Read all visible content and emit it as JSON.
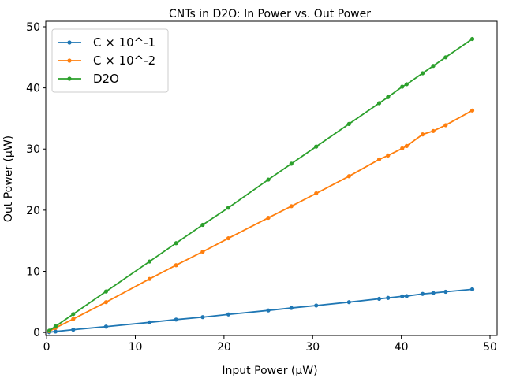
{
  "chart_data": {
    "type": "line",
    "title": "CNTs in D2O: In Power vs. Out Power",
    "xlabel": "Input Power (μW)",
    "ylabel": "Out Power (μW)",
    "xlim": [
      0,
      50
    ],
    "ylim": [
      0,
      50
    ],
    "xticks": [
      0,
      10,
      20,
      30,
      40,
      50
    ],
    "yticks": [
      0,
      10,
      20,
      30,
      40,
      50
    ],
    "legend_position": "top-left",
    "grid": false,
    "series": [
      {
        "name": "C × 10^-1",
        "color": "#1f77b4",
        "x": [
          0.3,
          1.0,
          3.0,
          6.7,
          11.6,
          14.6,
          17.6,
          20.5,
          25.0,
          27.6,
          30.4,
          34.1,
          37.5,
          38.5,
          40.1,
          40.6,
          42.4,
          43.6,
          45.0,
          48.0
        ],
        "y": [
          0.05,
          0.15,
          0.45,
          0.95,
          1.65,
          2.1,
          2.5,
          2.95,
          3.6,
          4.0,
          4.4,
          4.95,
          5.5,
          5.65,
          5.9,
          5.95,
          6.3,
          6.45,
          6.65,
          7.05
        ]
      },
      {
        "name": "C × 10^-2",
        "color": "#ff7f0e",
        "x": [
          0.3,
          1.0,
          3.0,
          6.7,
          11.6,
          14.6,
          17.6,
          20.5,
          25.0,
          27.6,
          30.4,
          34.1,
          37.5,
          38.5,
          40.1,
          40.6,
          42.4,
          43.6,
          45.0,
          48.0
        ],
        "y": [
          0.2,
          0.75,
          2.2,
          4.95,
          8.75,
          11.0,
          13.2,
          15.4,
          18.75,
          20.65,
          22.75,
          25.55,
          28.3,
          28.95,
          30.1,
          30.5,
          32.4,
          32.95,
          33.9,
          36.3
        ]
      },
      {
        "name": "D2O",
        "color": "#2ca02c",
        "x": [
          0.3,
          1.0,
          3.0,
          6.7,
          11.6,
          14.6,
          17.6,
          20.5,
          25.0,
          27.6,
          30.4,
          34.1,
          37.5,
          38.5,
          40.1,
          40.6,
          42.4,
          43.6,
          45.0,
          48.0
        ],
        "y": [
          0.3,
          1.0,
          3.0,
          6.7,
          11.6,
          14.6,
          17.6,
          20.4,
          25.0,
          27.6,
          30.4,
          34.1,
          37.5,
          38.5,
          40.2,
          40.6,
          42.4,
          43.6,
          45.0,
          48.0
        ]
      }
    ]
  }
}
